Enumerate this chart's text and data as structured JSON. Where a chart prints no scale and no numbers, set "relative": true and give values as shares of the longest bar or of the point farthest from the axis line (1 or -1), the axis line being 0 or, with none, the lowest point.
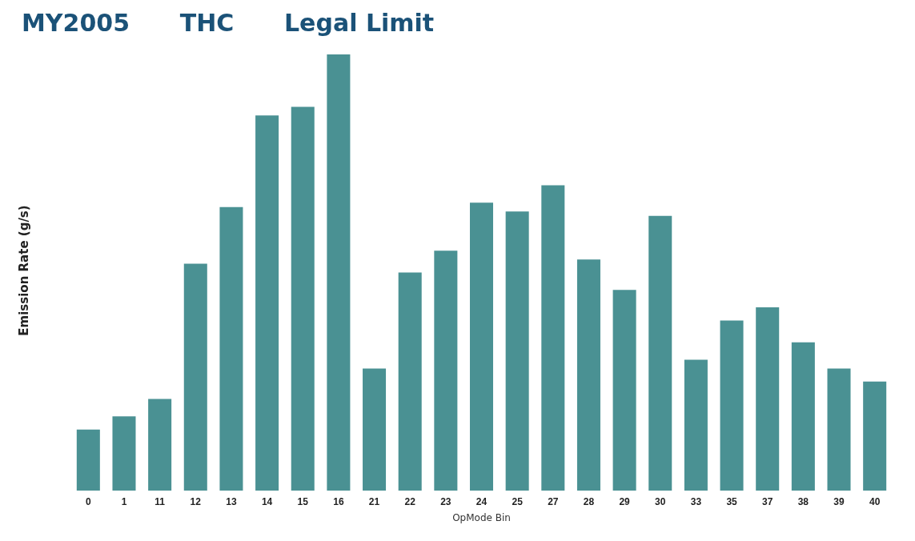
{
  "chart_data": {
    "type": "bar",
    "title": "MY2005      THC      Legal Limit",
    "xlabel": "OpMode Bin",
    "ylabel": "Emission Rate (g/s)",
    "categories": [
      "0",
      "1",
      "11",
      "12",
      "13",
      "14",
      "15",
      "16",
      "21",
      "22",
      "23",
      "24",
      "25",
      "27",
      "28",
      "29",
      "30",
      "33",
      "35",
      "37",
      "38",
      "39",
      "40"
    ],
    "values": [
      0.14,
      0.17,
      0.21,
      0.52,
      0.65,
      0.86,
      0.88,
      1,
      0.28,
      0.5,
      0.55,
      0.66,
      0.64,
      0.7,
      0.53,
      0.46,
      0.63,
      0.3,
      0.39,
      0.42,
      0.34,
      0.28,
      0.25
    ],
    "color": "#4a9193",
    "relative": true
  }
}
